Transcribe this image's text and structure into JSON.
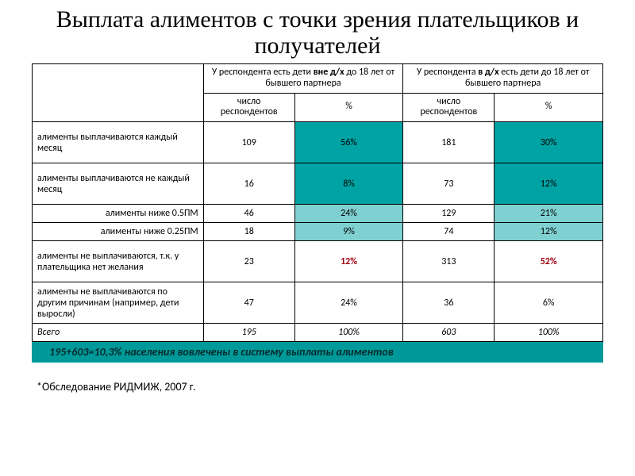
{
  "colors": {
    "teal": "#00a3a3",
    "teal_light": "#7fd1d1",
    "page_bg": "#ffffff",
    "border": "#000000",
    "red_pct": "#a00010",
    "summary_bg": "#009999"
  },
  "layout": {
    "col_widths_pct": [
      30,
      16,
      19,
      16,
      19
    ]
  },
  "title": "Выплата алиментов с точки зрения плательщиков и получателей",
  "header_top": {
    "group1_pre": "У респондента есть дети ",
    "group1_bold": "вне д/х",
    "group1_post": " до 18 лет от бывшего партнера",
    "group2_pre": "У респондента ",
    "group2_bold": "в д/х",
    "group2_post": " есть дети до 18 лет от бывшего партнера"
  },
  "header_sub": {
    "count": "число респондентов",
    "pct": "%"
  },
  "rows": [
    {
      "label": "алименты выплачиваются каждый месяц",
      "align": "left",
      "tall": true,
      "g1_n": "109",
      "g1_p": "56%",
      "g1_pcolor": "teal",
      "g2_n": "181",
      "g2_p": "30%",
      "g2_pcolor": "teal"
    },
    {
      "label": "алименты выплачиваются не каждый месяц",
      "align": "left",
      "tall": true,
      "g1_n": "16",
      "g1_p": "8%",
      "g1_pcolor": "teal",
      "g2_n": "73",
      "g2_p": "12%",
      "g2_pcolor": "teal"
    },
    {
      "label": "алименты ниже 0.5ПМ",
      "align": "right",
      "tall": false,
      "g1_n": "46",
      "g1_p": "24%",
      "g1_pcolor": "teal_light",
      "g2_n": "129",
      "g2_p": "21%",
      "g2_pcolor": "teal_light"
    },
    {
      "label": "алименты ниже 0.25ПМ",
      "align": "right",
      "tall": false,
      "g1_n": "18",
      "g1_p": "9%",
      "g1_pcolor": "teal_light",
      "g2_n": "74",
      "g2_p": "12%",
      "g2_pcolor": "teal_light"
    },
    {
      "label": "алименты не выплачиваются, т.к. у плательщика нет желания",
      "align": "left",
      "tall": true,
      "g1_n": "23",
      "g1_p": "12%",
      "g1_pcolor": "none",
      "g1_red": true,
      "g2_n": "313",
      "g2_p": "52%",
      "g2_pcolor": "none",
      "g2_red": true
    },
    {
      "label": "алименты не выплачиваются по другим причинам (например, дети выросли)",
      "align": "left",
      "tall": true,
      "g1_n": "47",
      "g1_p": "24%",
      "g1_pcolor": "none",
      "g2_n": "36",
      "g2_p": "6%",
      "g2_pcolor": "none"
    }
  ],
  "total": {
    "label": "Всего",
    "g1_n": "195",
    "g1_p": "100%",
    "g2_n": "603",
    "g2_p": "100%"
  },
  "summary": "195+603=10,3% населения вовлечены в систему выплаты алиментов",
  "footnote": "*Обследование РИДМИЖ, 2007 г."
}
